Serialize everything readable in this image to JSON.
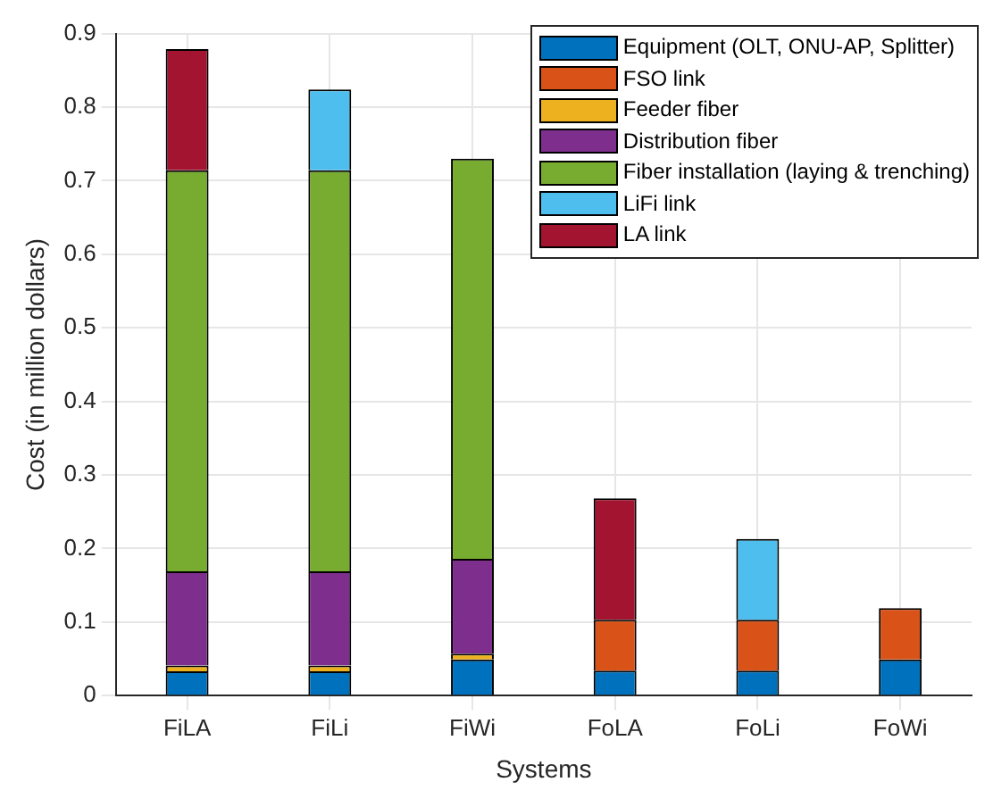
{
  "chart_data": {
    "type": "bar",
    "stacked": true,
    "xlabel": "Systems",
    "ylabel": "Cost (in million dollars)",
    "categories": [
      "FiLA",
      "FiLi",
      "FiWi",
      "FoLA",
      "FoLi",
      "FoWi"
    ],
    "series": [
      {
        "name": "Equipment (OLT, ONU-AP, Splitter)",
        "color": "#0072bd",
        "values": [
          0.033,
          0.033,
          0.049,
          0.034,
          0.034,
          0.049
        ]
      },
      {
        "name": "FSO link",
        "color": "#d95319",
        "values": [
          null,
          null,
          null,
          0.069,
          0.069,
          0.07
        ]
      },
      {
        "name": "Feeder fiber",
        "color": "#edb120",
        "values": [
          0.008,
          0.008,
          0.008,
          null,
          null,
          null
        ]
      },
      {
        "name": "Distribution fiber",
        "color": "#7e2f8e",
        "values": [
          0.128,
          0.128,
          0.129,
          null,
          null,
          null
        ]
      },
      {
        "name": "Fiber installation (laying & trenching)",
        "color": "#77ac30",
        "values": [
          0.545,
          0.545,
          0.544,
          null,
          null,
          null
        ]
      },
      {
        "name": "LiFi link",
        "color": "#4dbeee",
        "values": [
          null,
          0.11,
          null,
          null,
          0.11,
          null
        ]
      },
      {
        "name": "LA link",
        "color": "#a2142f",
        "values": [
          0.165,
          null,
          null,
          0.165,
          null,
          null
        ]
      }
    ],
    "ylim": [
      0,
      0.9
    ],
    "yticks": [
      0,
      0.1,
      0.2,
      0.3,
      0.4,
      0.5,
      0.6,
      0.7,
      0.8,
      0.9
    ],
    "grid": true,
    "legend": "top right"
  }
}
